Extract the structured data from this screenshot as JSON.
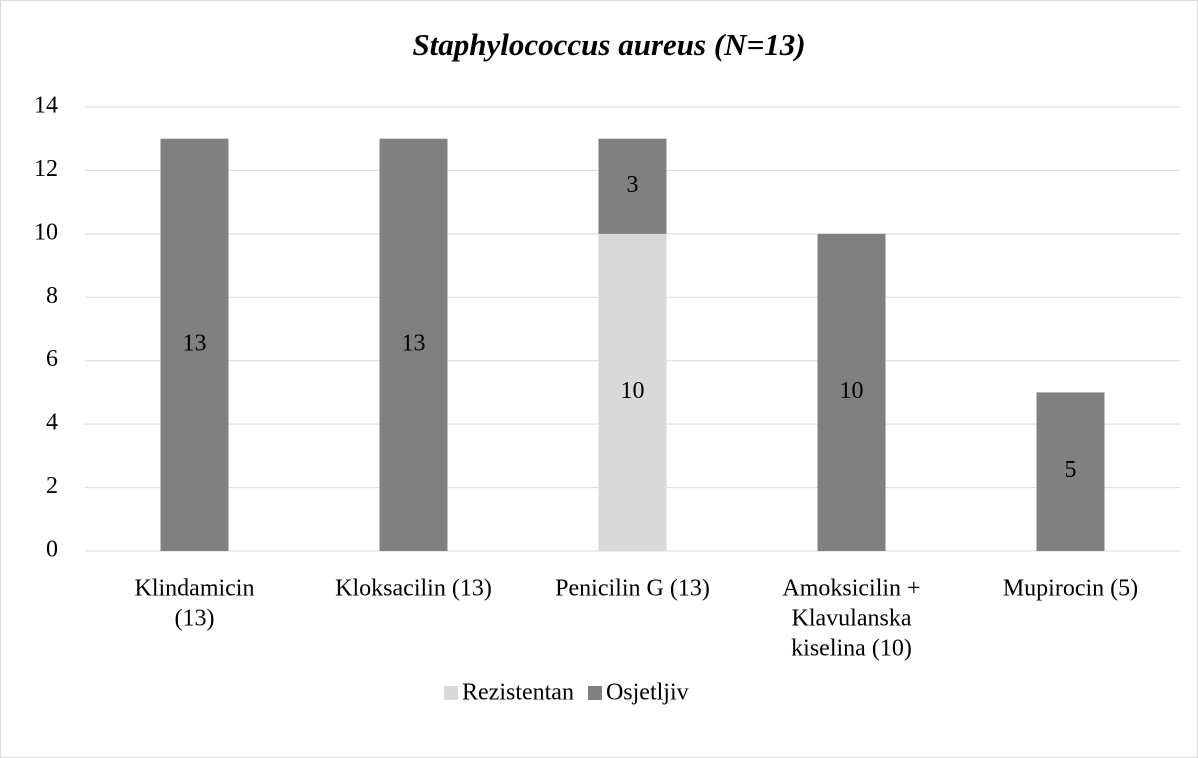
{
  "chart_data": {
    "type": "stacked_bar",
    "title": "Staphylococcus aureus (N=13)",
    "categories": [
      [
        "Klindamicin",
        "(13)"
      ],
      [
        "Kloksacilin (13)"
      ],
      [
        "Penicilin G (13)"
      ],
      [
        "Amoksicilin +",
        "Klavulanska",
        "kiselina (10)"
      ],
      [
        "Mupirocin (5)"
      ]
    ],
    "series": [
      {
        "name": "Rezistentan",
        "color": "#d9d9d9",
        "values": [
          null,
          null,
          10,
          null,
          null
        ]
      },
      {
        "name": "Osjetljiv",
        "color": "#808080",
        "values": [
          13,
          13,
          3,
          10,
          5
        ]
      }
    ],
    "ylim": [
      0,
      14
    ],
    "yticks": [
      0,
      2,
      4,
      6,
      8,
      10,
      12,
      14
    ],
    "grid": true,
    "legend": "bottom"
  }
}
